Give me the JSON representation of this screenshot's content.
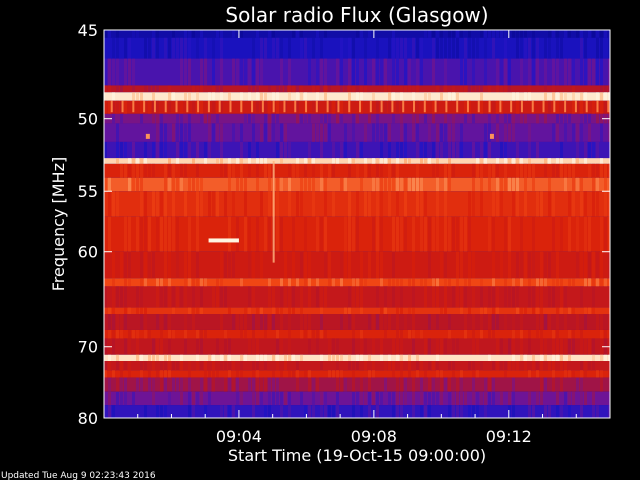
{
  "chart_data": {
    "type": "heatmap",
    "title": "Solar radio Flux (Glasgow)",
    "xlabel": "Start Time (19-Oct-15 09:00:00)",
    "ylabel": "Frequency [MHz]",
    "x_unit": "minutes after 09:00:00",
    "xlim": [
      0,
      15
    ],
    "ylim": [
      45,
      80
    ],
    "y_scale": "reciprocal",
    "x_ticks": [
      {
        "value": 4,
        "label": "09:04"
      },
      {
        "value": 8,
        "label": "09:08"
      },
      {
        "value": 12,
        "label": "09:12"
      }
    ],
    "y_ticks": [
      {
        "value": 45,
        "label": "45"
      },
      {
        "value": 50,
        "label": "50"
      },
      {
        "value": 55,
        "label": "55"
      },
      {
        "value": 60,
        "label": "60"
      },
      {
        "value": 70,
        "label": "70"
      },
      {
        "value": 80,
        "label": "80"
      }
    ],
    "colors": {
      "background": "#000000",
      "low": "#0a0a9a",
      "mid": "#c01010",
      "high": "#ffd0a0",
      "saturated": "#ffffff"
    },
    "bands": [
      {
        "f_start": 45.0,
        "f_end": 45.4,
        "intensity": 0.05
      },
      {
        "f_start": 45.4,
        "f_end": 46.5,
        "intensity": 0.12
      },
      {
        "f_start": 46.5,
        "f_end": 48.0,
        "intensity": 0.22
      },
      {
        "f_start": 48.0,
        "f_end": 48.4,
        "intensity": 0.45
      },
      {
        "f_start": 48.4,
        "f_end": 48.9,
        "intensity": 0.98
      },
      {
        "f_start": 48.9,
        "f_end": 49.7,
        "intensity": 0.55
      },
      {
        "f_start": 49.7,
        "f_end": 50.3,
        "intensity": 0.3
      },
      {
        "f_start": 50.3,
        "f_end": 51.5,
        "intensity": 0.26
      },
      {
        "f_start": 51.5,
        "f_end": 52.6,
        "intensity": 0.2
      },
      {
        "f_start": 52.6,
        "f_end": 53.0,
        "intensity": 0.95
      },
      {
        "f_start": 53.0,
        "f_end": 54.0,
        "intensity": 0.62
      },
      {
        "f_start": 54.0,
        "f_end": 55.0,
        "intensity": 0.78
      },
      {
        "f_start": 55.0,
        "f_end": 57.0,
        "intensity": 0.66
      },
      {
        "f_start": 57.0,
        "f_end": 60.0,
        "intensity": 0.62
      },
      {
        "f_start": 60.0,
        "f_end": 62.5,
        "intensity": 0.55
      },
      {
        "f_start": 62.5,
        "f_end": 63.3,
        "intensity": 0.75
      },
      {
        "f_start": 63.3,
        "f_end": 65.5,
        "intensity": 0.5
      },
      {
        "f_start": 65.5,
        "f_end": 66.2,
        "intensity": 0.68
      },
      {
        "f_start": 66.2,
        "f_end": 68.0,
        "intensity": 0.45
      },
      {
        "f_start": 68.0,
        "f_end": 69.0,
        "intensity": 0.62
      },
      {
        "f_start": 69.0,
        "f_end": 71.0,
        "intensity": 0.48
      },
      {
        "f_start": 71.0,
        "f_end": 71.8,
        "intensity": 0.97
      },
      {
        "f_start": 71.8,
        "f_end": 73.0,
        "intensity": 0.5
      },
      {
        "f_start": 73.0,
        "f_end": 74.0,
        "intensity": 0.62
      },
      {
        "f_start": 74.0,
        "f_end": 76.0,
        "intensity": 0.38
      },
      {
        "f_start": 76.0,
        "f_end": 78.0,
        "intensity": 0.28
      },
      {
        "f_start": 78.0,
        "f_end": 80.0,
        "intensity": 0.18
      }
    ],
    "features": [
      {
        "kind": "burst",
        "time_start": 3.1,
        "time_end": 4.0,
        "freq": 59.0,
        "intensity": 1.0
      },
      {
        "kind": "spike",
        "time": 5.0,
        "freq_start": 52.8,
        "freq_end": 61.0,
        "intensity": 0.9
      },
      {
        "kind": "dot",
        "time": 1.3,
        "freq": 51.1,
        "intensity": 0.85
      },
      {
        "kind": "dot",
        "time": 11.5,
        "freq": 51.1,
        "intensity": 0.85
      }
    ]
  },
  "footer": {
    "updated_text": "Updated Tue Aug  9 02:23:43 2016"
  }
}
